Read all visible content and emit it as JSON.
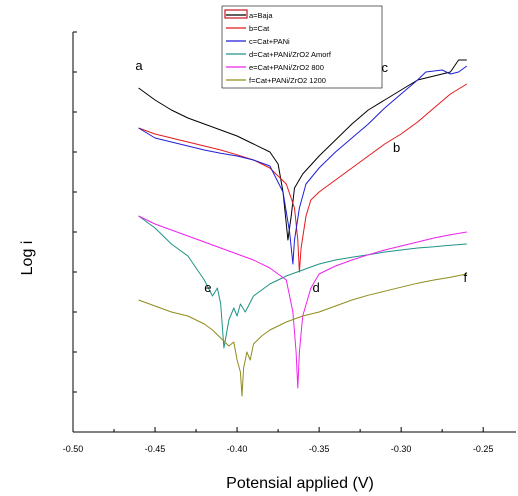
{
  "chart_data": {
    "type": "line",
    "title": "",
    "xlabel": "Potensial applied (V)",
    "ylabel": "Log i",
    "xlim": [
      -0.5,
      -0.23
    ],
    "ylim": [
      0,
      1
    ],
    "x_ticks": [
      -0.5,
      -0.45,
      -0.4,
      -0.35,
      -0.3,
      -0.25
    ],
    "x_tick_labels": [
      "-0.50",
      "-0.45",
      "-0.40",
      "-0.35",
      "-0.30",
      "-0.25"
    ],
    "y_tick_count": 10,
    "grid": false,
    "legend_position": "top-center",
    "series": [
      {
        "name": "a=Baja",
        "curve_label": "a",
        "color": "#000000",
        "points": [
          [
            -0.46,
            0.86
          ],
          [
            -0.45,
            0.83
          ],
          [
            -0.44,
            0.805
          ],
          [
            -0.43,
            0.785
          ],
          [
            -0.42,
            0.77
          ],
          [
            -0.41,
            0.755
          ],
          [
            -0.4,
            0.74
          ],
          [
            -0.39,
            0.72
          ],
          [
            -0.38,
            0.7
          ],
          [
            -0.375,
            0.67
          ],
          [
            -0.372,
            0.6
          ],
          [
            -0.37,
            0.52
          ],
          [
            -0.369,
            0.48
          ],
          [
            -0.367,
            0.54
          ],
          [
            -0.365,
            0.61
          ],
          [
            -0.36,
            0.645
          ],
          [
            -0.35,
            0.69
          ],
          [
            -0.34,
            0.73
          ],
          [
            -0.33,
            0.77
          ],
          [
            -0.32,
            0.805
          ],
          [
            -0.31,
            0.83
          ],
          [
            -0.3,
            0.855
          ],
          [
            -0.29,
            0.88
          ],
          [
            -0.28,
            0.89
          ],
          [
            -0.27,
            0.9
          ],
          [
            -0.265,
            0.93
          ],
          [
            -0.26,
            0.93
          ]
        ]
      },
      {
        "name": "b=Cat",
        "curve_label": "b",
        "color": "#e41a1c",
        "points": [
          [
            -0.46,
            0.76
          ],
          [
            -0.45,
            0.745
          ],
          [
            -0.44,
            0.735
          ],
          [
            -0.43,
            0.725
          ],
          [
            -0.42,
            0.715
          ],
          [
            -0.41,
            0.705
          ],
          [
            -0.4,
            0.693
          ],
          [
            -0.39,
            0.68
          ],
          [
            -0.38,
            0.66
          ],
          [
            -0.37,
            0.62
          ],
          [
            -0.365,
            0.56
          ],
          [
            -0.363,
            0.48
          ],
          [
            -0.362,
            0.4
          ],
          [
            -0.361,
            0.46
          ],
          [
            -0.358,
            0.54
          ],
          [
            -0.355,
            0.58
          ],
          [
            -0.35,
            0.6
          ],
          [
            -0.34,
            0.63
          ],
          [
            -0.33,
            0.66
          ],
          [
            -0.32,
            0.69
          ],
          [
            -0.31,
            0.72
          ],
          [
            -0.3,
            0.745
          ],
          [
            -0.29,
            0.775
          ],
          [
            -0.28,
            0.81
          ],
          [
            -0.27,
            0.845
          ],
          [
            -0.26,
            0.87
          ]
        ]
      },
      {
        "name": "c=Cat+PANi",
        "curve_label": "c",
        "color": "#1f1fd6",
        "points": [
          [
            -0.46,
            0.76
          ],
          [
            -0.45,
            0.735
          ],
          [
            -0.44,
            0.725
          ],
          [
            -0.43,
            0.715
          ],
          [
            -0.42,
            0.705
          ],
          [
            -0.41,
            0.697
          ],
          [
            -0.4,
            0.69
          ],
          [
            -0.39,
            0.68
          ],
          [
            -0.38,
            0.665
          ],
          [
            -0.372,
            0.6
          ],
          [
            -0.368,
            0.5
          ],
          [
            -0.366,
            0.42
          ],
          [
            -0.365,
            0.48
          ],
          [
            -0.362,
            0.56
          ],
          [
            -0.358,
            0.62
          ],
          [
            -0.35,
            0.66
          ],
          [
            -0.34,
            0.7
          ],
          [
            -0.33,
            0.735
          ],
          [
            -0.32,
            0.77
          ],
          [
            -0.31,
            0.81
          ],
          [
            -0.3,
            0.845
          ],
          [
            -0.29,
            0.88
          ],
          [
            -0.285,
            0.9
          ],
          [
            -0.275,
            0.905
          ],
          [
            -0.27,
            0.895
          ],
          [
            -0.265,
            0.9
          ],
          [
            -0.26,
            0.915
          ]
        ]
      },
      {
        "name": "d=Cat+PANi/ZrO2 Amorf",
        "curve_label": "d",
        "color": "#1e9387",
        "points": [
          [
            -0.46,
            0.54
          ],
          [
            -0.45,
            0.51
          ],
          [
            -0.44,
            0.47
          ],
          [
            -0.43,
            0.44
          ],
          [
            -0.425,
            0.41
          ],
          [
            -0.42,
            0.38
          ],
          [
            -0.415,
            0.34
          ],
          [
            -0.412,
            0.36
          ],
          [
            -0.41,
            0.32
          ],
          [
            -0.408,
            0.21
          ],
          [
            -0.405,
            0.28
          ],
          [
            -0.402,
            0.31
          ],
          [
            -0.4,
            0.29
          ],
          [
            -0.398,
            0.32
          ],
          [
            -0.395,
            0.3
          ],
          [
            -0.39,
            0.34
          ],
          [
            -0.385,
            0.355
          ],
          [
            -0.38,
            0.37
          ],
          [
            -0.37,
            0.39
          ],
          [
            -0.36,
            0.405
          ],
          [
            -0.35,
            0.42
          ],
          [
            -0.34,
            0.43
          ],
          [
            -0.33,
            0.437
          ],
          [
            -0.32,
            0.443
          ],
          [
            -0.31,
            0.45
          ],
          [
            -0.3,
            0.455
          ],
          [
            -0.29,
            0.46
          ],
          [
            -0.28,
            0.463
          ],
          [
            -0.27,
            0.467
          ],
          [
            -0.26,
            0.47
          ]
        ]
      },
      {
        "name": "e=Cat+PANi/ZrO2 800",
        "curve_label": "e",
        "color": "#ee22ee",
        "points": [
          [
            -0.46,
            0.54
          ],
          [
            -0.45,
            0.52
          ],
          [
            -0.44,
            0.505
          ],
          [
            -0.43,
            0.49
          ],
          [
            -0.42,
            0.475
          ],
          [
            -0.41,
            0.46
          ],
          [
            -0.4,
            0.445
          ],
          [
            -0.39,
            0.43
          ],
          [
            -0.38,
            0.41
          ],
          [
            -0.37,
            0.38
          ],
          [
            -0.366,
            0.3
          ],
          [
            -0.364,
            0.2
          ],
          [
            -0.363,
            0.11
          ],
          [
            -0.362,
            0.2
          ],
          [
            -0.36,
            0.29
          ],
          [
            -0.355,
            0.36
          ],
          [
            -0.35,
            0.395
          ],
          [
            -0.34,
            0.415
          ],
          [
            -0.33,
            0.43
          ],
          [
            -0.32,
            0.443
          ],
          [
            -0.31,
            0.455
          ],
          [
            -0.3,
            0.465
          ],
          [
            -0.29,
            0.475
          ],
          [
            -0.28,
            0.485
          ],
          [
            -0.27,
            0.493
          ],
          [
            -0.26,
            0.5
          ]
        ]
      },
      {
        "name": "f=Cat+PANi/ZrO2 1200",
        "curve_label": "f",
        "color": "#8f8c1d",
        "points": [
          [
            -0.46,
            0.33
          ],
          [
            -0.45,
            0.315
          ],
          [
            -0.44,
            0.3
          ],
          [
            -0.43,
            0.29
          ],
          [
            -0.42,
            0.27
          ],
          [
            -0.415,
            0.255
          ],
          [
            -0.41,
            0.235
          ],
          [
            -0.405,
            0.215
          ],
          [
            -0.402,
            0.225
          ],
          [
            -0.4,
            0.18
          ],
          [
            -0.398,
            0.15
          ],
          [
            -0.397,
            0.09
          ],
          [
            -0.396,
            0.16
          ],
          [
            -0.394,
            0.2
          ],
          [
            -0.392,
            0.18
          ],
          [
            -0.39,
            0.22
          ],
          [
            -0.385,
            0.24
          ],
          [
            -0.38,
            0.255
          ],
          [
            -0.37,
            0.275
          ],
          [
            -0.36,
            0.29
          ],
          [
            -0.35,
            0.3
          ],
          [
            -0.34,
            0.315
          ],
          [
            -0.33,
            0.33
          ],
          [
            -0.32,
            0.342
          ],
          [
            -0.31,
            0.352
          ],
          [
            -0.3,
            0.362
          ],
          [
            -0.29,
            0.372
          ],
          [
            -0.28,
            0.38
          ],
          [
            -0.27,
            0.387
          ],
          [
            -0.26,
            0.395
          ]
        ]
      }
    ],
    "legend": [
      {
        "text": "a=Baja",
        "color": "#000000"
      },
      {
        "text": "b=Cat",
        "color": "#e41a1c"
      },
      {
        "text": "c=Cat+PANi",
        "color": "#1f1fd6"
      },
      {
        "text": "d=Cat+PANi/ZrO2 Amorf",
        "color": "#1e9387"
      },
      {
        "text": "e=Cat+PANi/ZrO2 800",
        "color": "#ee22ee"
      },
      {
        "text": "f=Cat+PANi/ZrO2 1200",
        "color": "#8f8c1d"
      }
    ],
    "curve_labels": [
      {
        "text": "a",
        "x": -0.462,
        "y": 0.905
      },
      {
        "text": "b",
        "x": -0.305,
        "y": 0.7
      },
      {
        "text": "c",
        "x": -0.312,
        "y": 0.9
      },
      {
        "text": "d",
        "x": -0.354,
        "y": 0.35
      },
      {
        "text": "e",
        "x": -0.42,
        "y": 0.35
      },
      {
        "text": "f",
        "x": -0.262,
        "y": 0.375
      }
    ]
  }
}
